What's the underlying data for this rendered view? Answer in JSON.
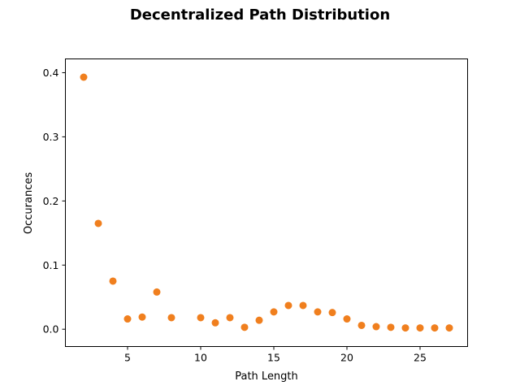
{
  "chart_data": {
    "type": "scatter",
    "title": "Decentralized Path Distribution",
    "xlabel": "Path Length",
    "ylabel": "Occurances",
    "xlim": [
      0.75,
      28.25
    ],
    "ylim": [
      -0.027,
      0.4215
    ],
    "xticks": [
      5,
      10,
      15,
      20,
      25
    ],
    "xtick_labels": [
      "5",
      "10",
      "15",
      "20",
      "25"
    ],
    "yticks": [
      0.0,
      0.1,
      0.2,
      0.3,
      0.4
    ],
    "ytick_labels": [
      "0.0",
      "0.1",
      "0.2",
      "0.3",
      "0.4"
    ],
    "grid": false,
    "marker_color": "#f07f1e",
    "x": [
      2,
      3,
      4,
      5,
      6,
      7,
      8,
      10,
      11,
      12,
      13,
      14,
      15,
      16,
      17,
      18,
      19,
      20,
      21,
      22,
      23,
      24,
      25,
      26,
      27
    ],
    "y": [
      0.393,
      0.165,
      0.075,
      0.016,
      0.019,
      0.058,
      0.018,
      0.018,
      0.01,
      0.018,
      0.003,
      0.014,
      0.027,
      0.037,
      0.037,
      0.027,
      0.026,
      0.016,
      0.006,
      0.004,
      0.003,
      0.002,
      0.002,
      0.002,
      0.002
    ]
  }
}
